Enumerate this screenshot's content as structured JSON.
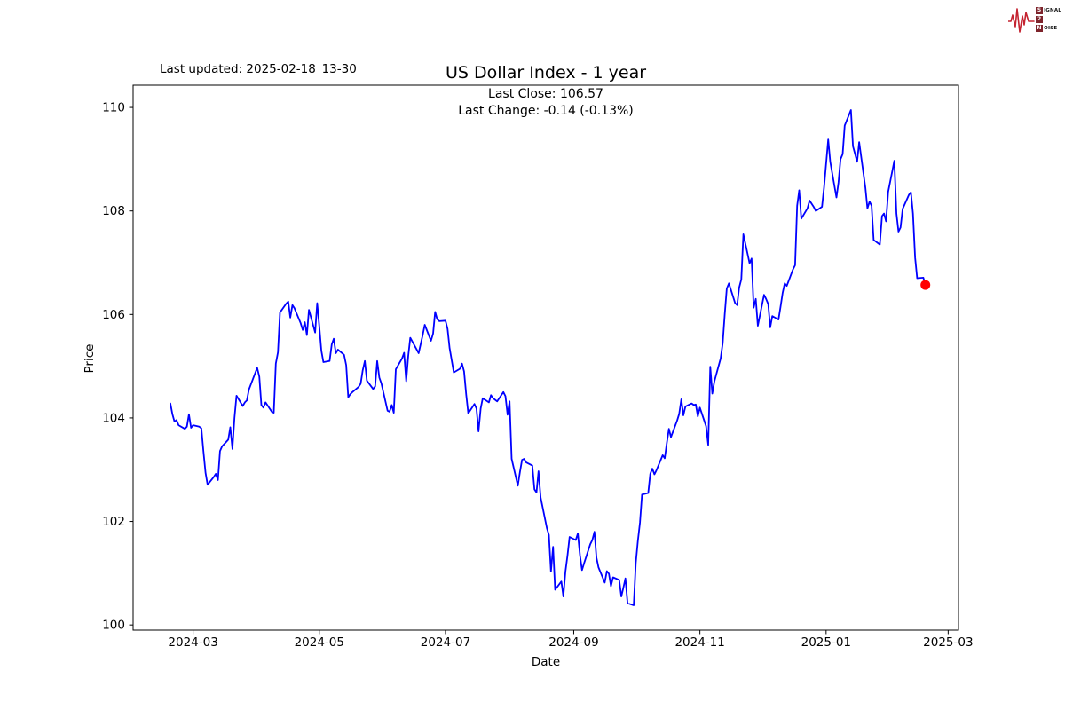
{
  "page": {
    "background": "#ffffff"
  },
  "header": {
    "last_updated": "Last updated: 2025-02-18_13-30"
  },
  "logo": {
    "wave_color": "#c42330",
    "box_color": "#7d232b",
    "row1_boxed": "S",
    "row1_rest": "IGNAL",
    "row2_boxed": "2",
    "row2_rest": "",
    "row3_boxed": "N",
    "row3_rest": "OISE"
  },
  "chart_data": {
    "type": "line",
    "title": "US Dollar Index - 1 year",
    "last_close_label": "Last Close: 106.57",
    "last_change_label": "Last Change: -0.14 (-0.13%)",
    "xlabel": "Date",
    "ylabel": "Price",
    "grid": false,
    "legend": "none",
    "line_color": "#0000ff",
    "marker_color": "#ff0000",
    "axis_color": "#000000",
    "ylim": [
      99.9,
      110.43
    ],
    "x_domain": [
      "2024-02-01",
      "2025-03-06"
    ],
    "y_ticks": [
      100,
      102,
      104,
      106,
      108,
      110
    ],
    "x_ticks": [
      {
        "date": "2024-03-01",
        "label": "2024-03"
      },
      {
        "date": "2024-05-01",
        "label": "2024-05"
      },
      {
        "date": "2024-07-01",
        "label": "2024-07"
      },
      {
        "date": "2024-09-01",
        "label": "2024-09"
      },
      {
        "date": "2024-11-01",
        "label": "2024-11"
      },
      {
        "date": "2025-01-01",
        "label": "2025-01"
      },
      {
        "date": "2025-03-01",
        "label": "2025-03"
      }
    ],
    "last_point": {
      "date": "2025-02-18",
      "value": 106.57
    },
    "series": [
      {
        "name": "US Dollar Index",
        "points": [
          [
            "2024-02-19",
            104.28
          ],
          [
            "2024-02-20",
            104.07
          ],
          [
            "2024-02-21",
            103.93
          ],
          [
            "2024-02-22",
            103.96
          ],
          [
            "2024-02-23",
            103.86
          ],
          [
            "2024-02-26",
            103.79
          ],
          [
            "2024-02-27",
            103.83
          ],
          [
            "2024-02-28",
            104.07
          ],
          [
            "2024-02-29",
            103.81
          ],
          [
            "2024-03-01",
            103.86
          ],
          [
            "2024-03-04",
            103.83
          ],
          [
            "2024-03-05",
            103.8
          ],
          [
            "2024-03-06",
            103.36
          ],
          [
            "2024-03-07",
            102.94
          ],
          [
            "2024-03-08",
            102.71
          ],
          [
            "2024-03-11",
            102.86
          ],
          [
            "2024-03-12",
            102.92
          ],
          [
            "2024-03-13",
            102.8
          ],
          [
            "2024-03-14",
            103.36
          ],
          [
            "2024-03-15",
            103.45
          ],
          [
            "2024-03-18",
            103.58
          ],
          [
            "2024-03-19",
            103.82
          ],
          [
            "2024-03-20",
            103.4
          ],
          [
            "2024-03-21",
            104.0
          ],
          [
            "2024-03-22",
            104.43
          ],
          [
            "2024-03-25",
            104.23
          ],
          [
            "2024-03-26",
            104.3
          ],
          [
            "2024-03-27",
            104.34
          ],
          [
            "2024-03-28",
            104.55
          ],
          [
            "2024-04-01",
            104.97
          ],
          [
            "2024-04-02",
            104.8
          ],
          [
            "2024-04-03",
            104.25
          ],
          [
            "2024-04-04",
            104.2
          ],
          [
            "2024-04-05",
            104.3
          ],
          [
            "2024-04-08",
            104.12
          ],
          [
            "2024-04-09",
            104.1
          ],
          [
            "2024-04-10",
            105.05
          ],
          [
            "2024-04-11",
            105.27
          ],
          [
            "2024-04-12",
            106.04
          ],
          [
            "2024-04-15",
            106.21
          ],
          [
            "2024-04-16",
            106.25
          ],
          [
            "2024-04-17",
            105.94
          ],
          [
            "2024-04-18",
            106.18
          ],
          [
            "2024-04-19",
            106.12
          ],
          [
            "2024-04-22",
            105.83
          ],
          [
            "2024-04-23",
            105.7
          ],
          [
            "2024-04-24",
            105.85
          ],
          [
            "2024-04-25",
            105.6
          ],
          [
            "2024-04-26",
            106.09
          ],
          [
            "2024-04-29",
            105.65
          ],
          [
            "2024-04-30",
            106.22
          ],
          [
            "2024-05-01",
            105.77
          ],
          [
            "2024-05-02",
            105.3
          ],
          [
            "2024-05-03",
            105.08
          ],
          [
            "2024-05-06",
            105.1
          ],
          [
            "2024-05-07",
            105.42
          ],
          [
            "2024-05-08",
            105.53
          ],
          [
            "2024-05-09",
            105.25
          ],
          [
            "2024-05-10",
            105.32
          ],
          [
            "2024-05-13",
            105.22
          ],
          [
            "2024-05-14",
            105.02
          ],
          [
            "2024-05-15",
            104.4
          ],
          [
            "2024-05-16",
            104.46
          ],
          [
            "2024-05-17",
            104.5
          ],
          [
            "2024-05-20",
            104.6
          ],
          [
            "2024-05-21",
            104.66
          ],
          [
            "2024-05-22",
            104.92
          ],
          [
            "2024-05-23",
            105.1
          ],
          [
            "2024-05-24",
            104.72
          ],
          [
            "2024-05-27",
            104.56
          ],
          [
            "2024-05-28",
            104.61
          ],
          [
            "2024-05-29",
            105.1
          ],
          [
            "2024-05-30",
            104.78
          ],
          [
            "2024-05-31",
            104.67
          ],
          [
            "2024-06-03",
            104.14
          ],
          [
            "2024-06-04",
            104.12
          ],
          [
            "2024-06-05",
            104.25
          ],
          [
            "2024-06-06",
            104.1
          ],
          [
            "2024-06-07",
            104.94
          ],
          [
            "2024-06-10",
            105.15
          ],
          [
            "2024-06-11",
            105.26
          ],
          [
            "2024-06-12",
            104.71
          ],
          [
            "2024-06-13",
            105.2
          ],
          [
            "2024-06-14",
            105.55
          ],
          [
            "2024-06-17",
            105.33
          ],
          [
            "2024-06-18",
            105.25
          ],
          [
            "2024-06-20",
            105.6
          ],
          [
            "2024-06-21",
            105.8
          ],
          [
            "2024-06-24",
            105.49
          ],
          [
            "2024-06-25",
            105.63
          ],
          [
            "2024-06-26",
            106.05
          ],
          [
            "2024-06-27",
            105.91
          ],
          [
            "2024-06-28",
            105.87
          ],
          [
            "2024-07-01",
            105.88
          ],
          [
            "2024-07-02",
            105.72
          ],
          [
            "2024-07-03",
            105.35
          ],
          [
            "2024-07-05",
            104.88
          ],
          [
            "2024-07-08",
            104.95
          ],
          [
            "2024-07-09",
            105.05
          ],
          [
            "2024-07-10",
            104.9
          ],
          [
            "2024-07-11",
            104.45
          ],
          [
            "2024-07-12",
            104.09
          ],
          [
            "2024-07-15",
            104.27
          ],
          [
            "2024-07-16",
            104.18
          ],
          [
            "2024-07-17",
            103.74
          ],
          [
            "2024-07-18",
            104.18
          ],
          [
            "2024-07-19",
            104.38
          ],
          [
            "2024-07-22",
            104.3
          ],
          [
            "2024-07-23",
            104.44
          ],
          [
            "2024-07-24",
            104.38
          ],
          [
            "2024-07-25",
            104.35
          ],
          [
            "2024-07-26",
            104.32
          ],
          [
            "2024-07-29",
            104.5
          ],
          [
            "2024-07-30",
            104.42
          ],
          [
            "2024-07-31",
            104.06
          ],
          [
            "2024-08-01",
            104.32
          ],
          [
            "2024-08-02",
            103.21
          ],
          [
            "2024-08-05",
            102.69
          ],
          [
            "2024-08-06",
            102.96
          ],
          [
            "2024-08-07",
            103.19
          ],
          [
            "2024-08-08",
            103.21
          ],
          [
            "2024-08-09",
            103.14
          ],
          [
            "2024-08-12",
            103.08
          ],
          [
            "2024-08-13",
            102.62
          ],
          [
            "2024-08-14",
            102.56
          ],
          [
            "2024-08-15",
            102.97
          ],
          [
            "2024-08-16",
            102.46
          ],
          [
            "2024-08-19",
            101.87
          ],
          [
            "2024-08-20",
            101.74
          ],
          [
            "2024-08-21",
            101.03
          ],
          [
            "2024-08-22",
            101.51
          ],
          [
            "2024-08-23",
            100.68
          ],
          [
            "2024-08-26",
            100.84
          ],
          [
            "2024-08-27",
            100.55
          ],
          [
            "2024-08-28",
            101.03
          ],
          [
            "2024-08-29",
            101.35
          ],
          [
            "2024-08-30",
            101.7
          ],
          [
            "2024-09-02",
            101.64
          ],
          [
            "2024-09-03",
            101.77
          ],
          [
            "2024-09-04",
            101.35
          ],
          [
            "2024-09-05",
            101.06
          ],
          [
            "2024-09-06",
            101.19
          ],
          [
            "2024-09-09",
            101.56
          ],
          [
            "2024-09-10",
            101.64
          ],
          [
            "2024-09-11",
            101.8
          ],
          [
            "2024-09-12",
            101.3
          ],
          [
            "2024-09-13",
            101.11
          ],
          [
            "2024-09-16",
            100.82
          ],
          [
            "2024-09-17",
            101.04
          ],
          [
            "2024-09-18",
            100.99
          ],
          [
            "2024-09-19",
            100.75
          ],
          [
            "2024-09-20",
            100.92
          ],
          [
            "2024-09-23",
            100.87
          ],
          [
            "2024-09-24",
            100.55
          ],
          [
            "2024-09-25",
            100.72
          ],
          [
            "2024-09-26",
            100.9
          ],
          [
            "2024-09-27",
            100.42
          ],
          [
            "2024-09-30",
            100.38
          ],
          [
            "2024-10-01",
            101.2
          ],
          [
            "2024-10-02",
            101.62
          ],
          [
            "2024-10-03",
            101.98
          ],
          [
            "2024-10-04",
            102.52
          ],
          [
            "2024-10-07",
            102.55
          ],
          [
            "2024-10-08",
            102.92
          ],
          [
            "2024-10-09",
            103.02
          ],
          [
            "2024-10-10",
            102.91
          ],
          [
            "2024-10-11",
            102.99
          ],
          [
            "2024-10-14",
            103.28
          ],
          [
            "2024-10-15",
            103.22
          ],
          [
            "2024-10-16",
            103.52
          ],
          [
            "2024-10-17",
            103.79
          ],
          [
            "2024-10-18",
            103.63
          ],
          [
            "2024-10-21",
            103.95
          ],
          [
            "2024-10-22",
            104.08
          ],
          [
            "2024-10-23",
            104.36
          ],
          [
            "2024-10-24",
            104.05
          ],
          [
            "2024-10-25",
            104.22
          ],
          [
            "2024-10-28",
            104.28
          ],
          [
            "2024-10-29",
            104.25
          ],
          [
            "2024-10-30",
            104.26
          ],
          [
            "2024-10-31",
            104.03
          ],
          [
            "2024-11-01",
            104.2
          ],
          [
            "2024-11-04",
            103.84
          ],
          [
            "2024-11-05",
            103.48
          ],
          [
            "2024-11-06",
            104.99
          ],
          [
            "2024-11-07",
            104.47
          ],
          [
            "2024-11-08",
            104.71
          ],
          [
            "2024-11-11",
            105.15
          ],
          [
            "2024-11-12",
            105.44
          ],
          [
            "2024-11-13",
            106.0
          ],
          [
            "2024-11-14",
            106.5
          ],
          [
            "2024-11-15",
            106.6
          ],
          [
            "2024-11-18",
            106.22
          ],
          [
            "2024-11-19",
            106.18
          ],
          [
            "2024-11-20",
            106.52
          ],
          [
            "2024-11-21",
            106.68
          ],
          [
            "2024-11-22",
            107.55
          ],
          [
            "2024-11-25",
            106.99
          ],
          [
            "2024-11-26",
            107.08
          ],
          [
            "2024-11-27",
            106.13
          ],
          [
            "2024-11-28",
            106.3
          ],
          [
            "2024-11-29",
            105.78
          ],
          [
            "2024-12-02",
            106.38
          ],
          [
            "2024-12-03",
            106.3
          ],
          [
            "2024-12-04",
            106.2
          ],
          [
            "2024-12-05",
            105.75
          ],
          [
            "2024-12-06",
            105.97
          ],
          [
            "2024-12-09",
            105.9
          ],
          [
            "2024-12-10",
            106.15
          ],
          [
            "2024-12-11",
            106.42
          ],
          [
            "2024-12-12",
            106.6
          ],
          [
            "2024-12-13",
            106.55
          ],
          [
            "2024-12-16",
            106.87
          ],
          [
            "2024-12-17",
            106.95
          ],
          [
            "2024-12-18",
            108.1
          ],
          [
            "2024-12-19",
            108.4
          ],
          [
            "2024-12-20",
            107.85
          ],
          [
            "2024-12-23",
            108.05
          ],
          [
            "2024-12-24",
            108.2
          ],
          [
            "2024-12-26",
            108.08
          ],
          [
            "2024-12-27",
            108.0
          ],
          [
            "2024-12-30",
            108.08
          ],
          [
            "2024-12-31",
            108.45
          ],
          [
            "2025-01-02",
            109.38
          ],
          [
            "2025-01-03",
            108.95
          ],
          [
            "2025-01-06",
            108.26
          ],
          [
            "2025-01-07",
            108.55
          ],
          [
            "2025-01-08",
            109.0
          ],
          [
            "2025-01-09",
            109.1
          ],
          [
            "2025-01-10",
            109.65
          ],
          [
            "2025-01-13",
            109.95
          ],
          [
            "2025-01-14",
            109.25
          ],
          [
            "2025-01-15",
            109.1
          ],
          [
            "2025-01-16",
            108.95
          ],
          [
            "2025-01-17",
            109.33
          ],
          [
            "2025-01-20",
            108.45
          ],
          [
            "2025-01-21",
            108.05
          ],
          [
            "2025-01-22",
            108.18
          ],
          [
            "2025-01-23",
            108.1
          ],
          [
            "2025-01-24",
            107.44
          ],
          [
            "2025-01-27",
            107.35
          ],
          [
            "2025-01-28",
            107.9
          ],
          [
            "2025-01-29",
            107.95
          ],
          [
            "2025-01-30",
            107.8
          ],
          [
            "2025-01-31",
            108.37
          ],
          [
            "2025-02-03",
            108.97
          ],
          [
            "2025-02-04",
            107.95
          ],
          [
            "2025-02-05",
            107.6
          ],
          [
            "2025-02-06",
            107.68
          ],
          [
            "2025-02-07",
            108.04
          ],
          [
            "2025-02-10",
            108.31
          ],
          [
            "2025-02-11",
            108.36
          ],
          [
            "2025-02-12",
            107.95
          ],
          [
            "2025-02-13",
            107.1
          ],
          [
            "2025-02-14",
            106.7
          ],
          [
            "2025-02-17",
            106.71
          ],
          [
            "2025-02-18",
            106.57
          ]
        ]
      }
    ]
  }
}
